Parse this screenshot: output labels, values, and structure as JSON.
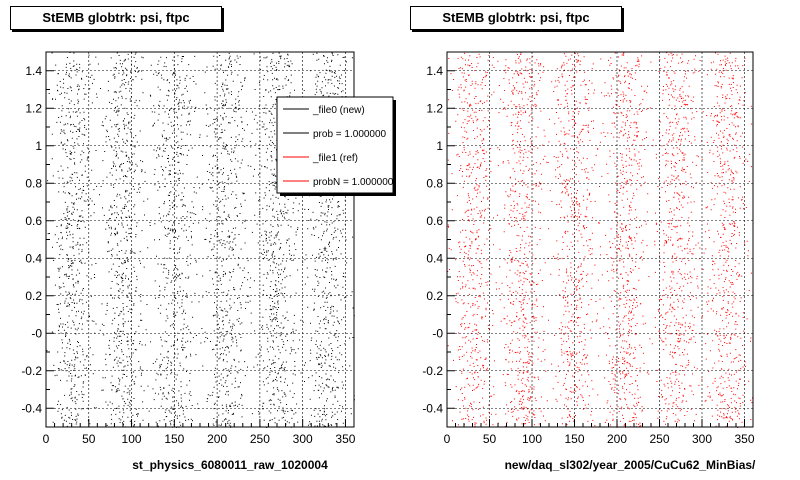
{
  "chart_data": [
    {
      "type": "scatter",
      "title": "StEMB globtrk: psi, ftpc",
      "xlabel": "st_physics_6080011_raw_1020004",
      "ylabel": "",
      "xlim": [
        0,
        360
      ],
      "ylim": [
        -0.5,
        1.5
      ],
      "xticks": [
        "0",
        "50",
        "100",
        "150",
        "200",
        "250",
        "300",
        "350"
      ],
      "yticks": [
        "-0.4",
        "-0.2",
        "-0",
        "0.2",
        "0.4",
        "0.6",
        "0.8",
        "1",
        "1.2",
        "1.4"
      ],
      "grid": true,
      "marker_color": "#000000",
      "legend": {
        "placement": "top-right",
        "entries": [
          {
            "label": "_file0 (new)",
            "color": "#000000"
          },
          {
            "label": "prob = 1.000000",
            "color": "#000000"
          },
          {
            "label": "_file1 (ref)",
            "color": "#ff0000"
          },
          {
            "label": "probN = 1.000000",
            "color": "#ff0000"
          }
        ]
      }
    },
    {
      "type": "scatter",
      "title": "StEMB globtrk: psi, ftpc",
      "xlabel": "new/daq_sl302/year_2005/CuCu62_MinBias/",
      "ylabel": "",
      "xlim": [
        0,
        360
      ],
      "ylim": [
        -0.5,
        1.5
      ],
      "xticks": [
        "0",
        "50",
        "100",
        "150",
        "200",
        "250",
        "300",
        "350"
      ],
      "yticks": [
        "-0.4",
        "-0.2",
        "-0",
        "0.2",
        "0.4",
        "0.6",
        "0.8",
        "1",
        "1.2",
        "1.4"
      ],
      "grid": true,
      "marker_color": "#ff0000"
    }
  ]
}
